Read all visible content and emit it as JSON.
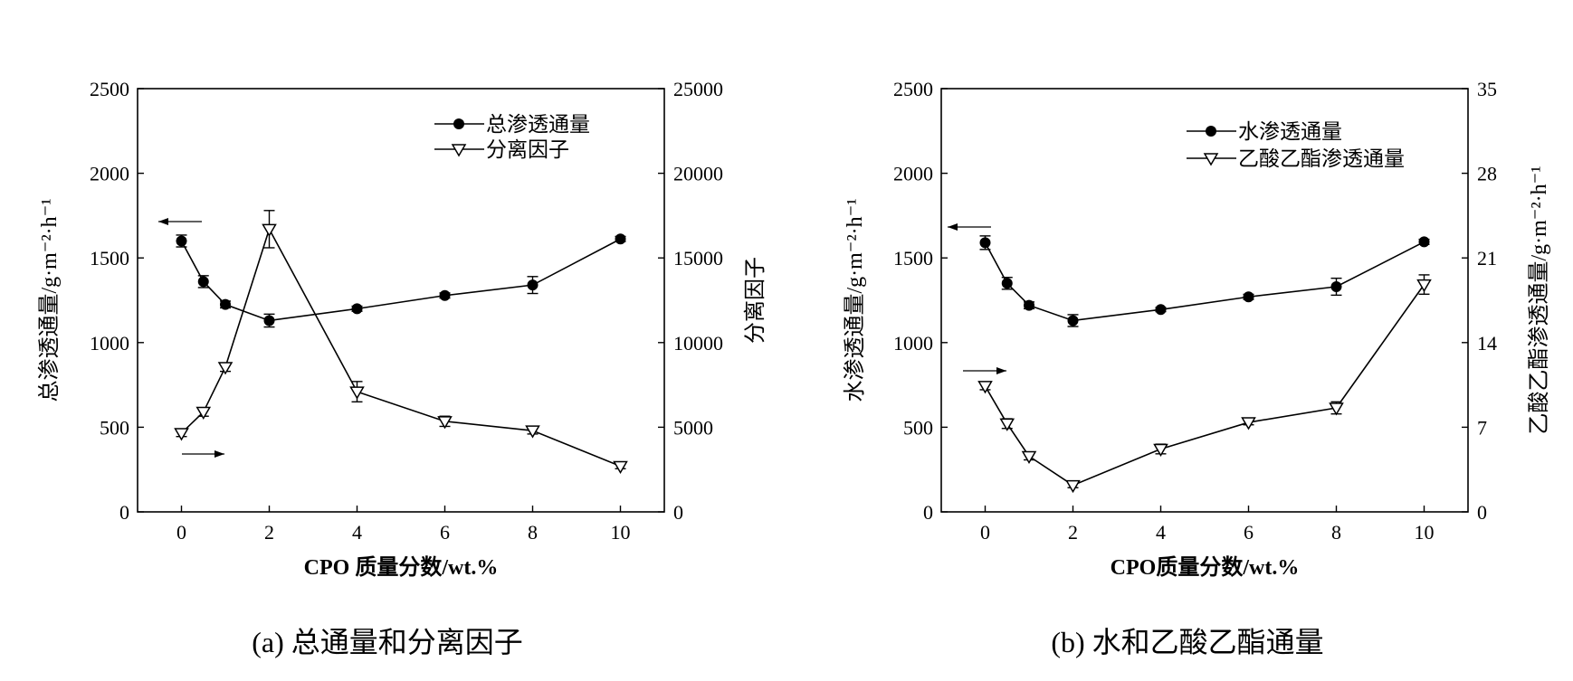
{
  "chart_data": [
    {
      "type": "line",
      "caption": "(a) 总通量和分离因子",
      "xlabel": "CPO 质量分数/wt.%",
      "ylabel_left": "总渗透通量/g·m⁻²·h⁻¹",
      "ylabel_right": "分离因子",
      "xlim": [
        -1,
        11
      ],
      "xticks": [
        "0",
        "2",
        "4",
        "6",
        "8",
        "10"
      ],
      "ylim_left": [
        0,
        2500
      ],
      "yticks_left": [
        "0",
        "500",
        "1000",
        "1500",
        "2000",
        "2500"
      ],
      "ylim_right": [
        0,
        25000
      ],
      "yticks_right": [
        "0",
        "5000",
        "10000",
        "15000",
        "20000",
        "25000"
      ],
      "x": [
        0,
        0.5,
        1,
        2,
        4,
        6,
        8,
        10
      ],
      "series": [
        {
          "name": "总渗透通量",
          "axis": "left",
          "marker": "filled-circle",
          "values": [
            1600,
            1360,
            1225,
            1130,
            1200,
            1278,
            1340,
            1612
          ],
          "errors": [
            35,
            35,
            20,
            38,
            15,
            15,
            50,
            15
          ]
        },
        {
          "name": "分离因子",
          "axis": "right",
          "marker": "open-triangle-down",
          "values": [
            4650,
            5900,
            8550,
            16700,
            7100,
            5350,
            4800,
            2700
          ],
          "errors": [
            200,
            250,
            250,
            1100,
            600,
            300,
            200,
            150
          ]
        }
      ]
    },
    {
      "type": "line",
      "caption": "(b) 水和乙酸乙酯通量",
      "xlabel": "CPO质量分数/wt.%",
      "ylabel_left": "水渗透通量/g·m⁻²·h⁻¹",
      "ylabel_right": "乙酸乙酯渗透通量/g·m⁻²·h⁻¹",
      "xlim": [
        -1,
        11
      ],
      "xticks": [
        "0",
        "2",
        "4",
        "6",
        "8",
        "10"
      ],
      "ylim_left": [
        0,
        2500
      ],
      "yticks_left": [
        "0",
        "500",
        "1000",
        "1500",
        "2000",
        "2500"
      ],
      "ylim_right": [
        0,
        35
      ],
      "yticks_right": [
        "0",
        "7",
        "14",
        "21",
        "28",
        "35"
      ],
      "x": [
        0,
        0.5,
        1,
        2,
        4,
        6,
        8,
        10
      ],
      "series": [
        {
          "name": "水渗透通量",
          "axis": "left",
          "marker": "filled-circle",
          "values": [
            1590,
            1350,
            1220,
            1130,
            1195,
            1270,
            1330,
            1595
          ],
          "errors": [
            40,
            35,
            20,
            35,
            12,
            15,
            50,
            15
          ]
        },
        {
          "name": "乙酸乙酯渗透通量",
          "axis": "right",
          "marker": "open-triangle-down",
          "values": [
            10.4,
            7.3,
            4.6,
            2.2,
            5.2,
            7.4,
            8.6,
            18.8
          ],
          "errors": [
            0.3,
            0.4,
            0.3,
            0.2,
            0.4,
            0.2,
            0.5,
            0.8
          ]
        }
      ]
    }
  ]
}
